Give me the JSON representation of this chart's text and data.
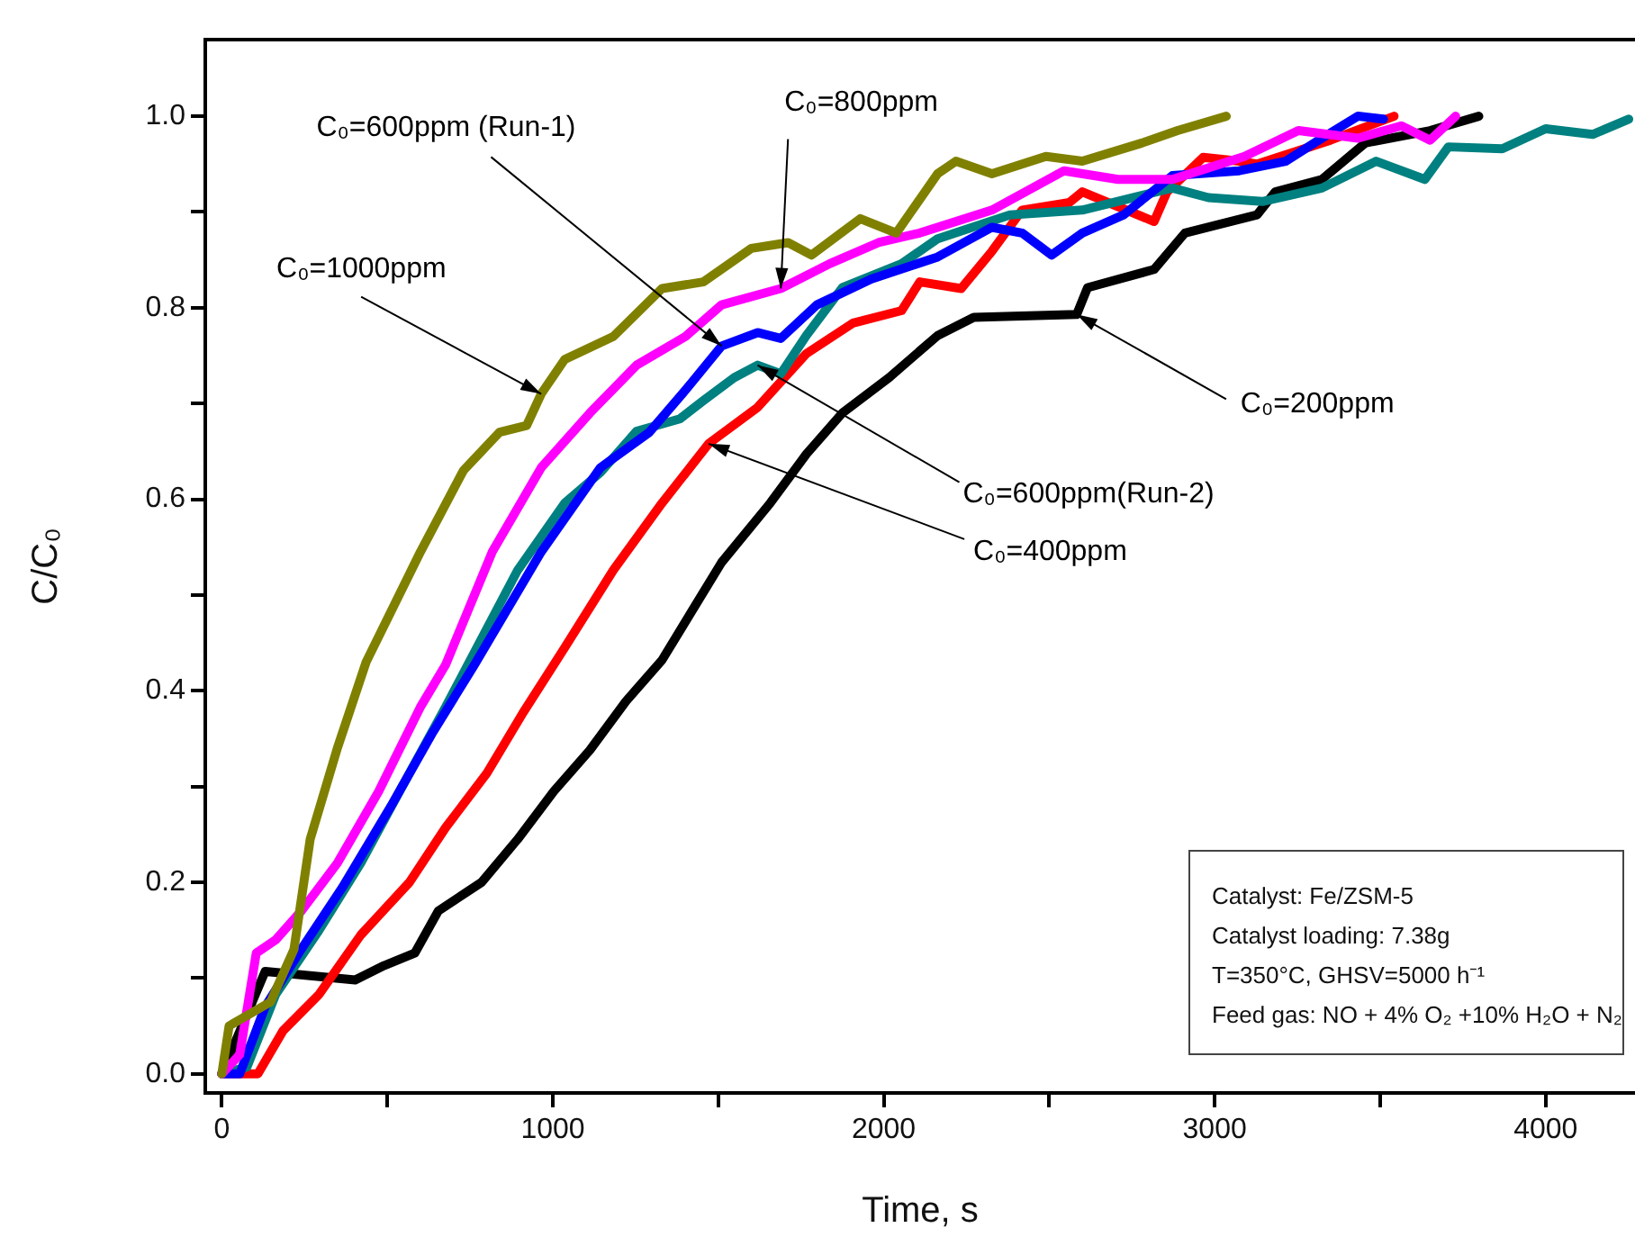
{
  "chart_data": {
    "type": "line",
    "xlabel": "Time, s",
    "ylabel": "C/C₀",
    "xlim": [
      -50,
      4270
    ],
    "ylim": [
      -0.02,
      1.08
    ],
    "xticks": [
      0,
      {
        "value": 500,
        "label": null
      },
      1000,
      {
        "value": 1500,
        "label": null
      },
      2000,
      {
        "value": 2500,
        "label": null
      },
      3000,
      {
        "value": 3500,
        "label": null
      },
      4000
    ],
    "yticks": [
      {
        "value": 0,
        "label": "0.0"
      },
      {
        "value": 0.1,
        "label": null
      },
      0.2,
      {
        "value": 0.3,
        "label": null
      },
      0.4,
      {
        "value": 0.5,
        "label": null
      },
      0.6,
      {
        "value": 0.7,
        "label": null
      },
      0.8,
      {
        "value": 0.9,
        "label": null
      },
      {
        "value": 1,
        "label": "1.0"
      }
    ],
    "grid": false,
    "legend": false,
    "marker": "none",
    "line_style": "solid",
    "series": [
      {
        "color": "#808000",
        "x": [
          0,
          22,
          147,
          218,
          267,
          349,
          436,
          600,
          730,
          839,
          921,
          965,
          1036,
          1183,
          1330,
          1455,
          1600,
          1711,
          1782,
          1929,
          2038,
          2163,
          2218,
          2327,
          2490,
          2600,
          2780,
          2888,
          3035
        ],
        "values": [
          0,
          0.05,
          0.075,
          0.13,
          0.245,
          0.34,
          0.43,
          0.545,
          0.63,
          0.67,
          0.677,
          0.71,
          0.746,
          0.77,
          0.82,
          0.827,
          0.862,
          0.868,
          0.855,
          0.893,
          0.878,
          0.94,
          0.953,
          0.94,
          0.958,
          0.953,
          0.972,
          0.985,
          1.0
        ]
      },
      {
        "color": "#ff00ff",
        "x": [
          0,
          54,
          104,
          163,
          240,
          349,
          474,
          600,
          676,
          817,
          965,
          1112,
          1253,
          1401,
          1510,
          1689,
          1837,
          1984,
          2109,
          2327,
          2545,
          2708,
          2872,
          3090,
          3253,
          3433,
          3564,
          3651,
          3728
        ],
        "values": [
          0,
          0.02,
          0.126,
          0.14,
          0.17,
          0.22,
          0.295,
          0.383,
          0.427,
          0.545,
          0.633,
          0.69,
          0.74,
          0.77,
          0.803,
          0.82,
          0.846,
          0.868,
          0.878,
          0.902,
          0.943,
          0.934,
          0.934,
          0.958,
          0.985,
          0.977,
          0.99,
          0.975,
          1.0
        ]
      },
      {
        "color": "#0000ff",
        "x": [
          0,
          54,
          131,
          240,
          365,
          512,
          638,
          763,
          965,
          1144,
          1292,
          1401,
          1510,
          1619,
          1689,
          1798,
          1962,
          2163,
          2327,
          2418,
          2507,
          2600,
          2725,
          2872,
          3074,
          3215,
          3324,
          3433,
          3510
        ],
        "values": [
          0,
          0,
          0.07,
          0.13,
          0.195,
          0.28,
          0.357,
          0.427,
          0.545,
          0.633,
          0.67,
          0.714,
          0.76,
          0.774,
          0.768,
          0.803,
          0.83,
          0.853,
          0.884,
          0.878,
          0.855,
          0.878,
          0.897,
          0.938,
          0.943,
          0.953,
          0.977,
          1.0,
          0.997
        ]
      },
      {
        "color": "#008080",
        "x": [
          0,
          76,
          163,
          294,
          420,
          545,
          676,
          894,
          1036,
          1144,
          1253,
          1384,
          1455,
          1548,
          1619,
          1689,
          1766,
          1875,
          2054,
          2163,
          2381,
          2600,
          2872,
          2981,
          3144,
          3324,
          3488,
          3635,
          3706,
          3869,
          4000,
          4142,
          4251
        ],
        "values": [
          0,
          0.007,
          0.083,
          0.15,
          0.22,
          0.3,
          0.383,
          0.526,
          0.596,
          0.628,
          0.671,
          0.684,
          0.703,
          0.727,
          0.74,
          0.731,
          0.771,
          0.821,
          0.846,
          0.872,
          0.897,
          0.902,
          0.925,
          0.915,
          0.911,
          0.925,
          0.953,
          0.934,
          0.968,
          0.966,
          0.987,
          0.981,
          0.997
        ]
      },
      {
        "color": "#ff0000",
        "x": [
          0,
          109,
          185,
          294,
          420,
          567,
          676,
          801,
          910,
          1036,
          1183,
          1330,
          1471,
          1619,
          1766,
          1907,
          2054,
          2109,
          2234,
          2327,
          2418,
          2561,
          2600,
          2817,
          2856,
          2965,
          3074,
          3128,
          3350,
          3542
        ],
        "values": [
          0,
          0,
          0.045,
          0.083,
          0.145,
          0.2,
          0.257,
          0.314,
          0.377,
          0.445,
          0.526,
          0.596,
          0.658,
          0.696,
          0.752,
          0.784,
          0.797,
          0.827,
          0.82,
          0.859,
          0.902,
          0.91,
          0.921,
          0.89,
          0.921,
          0.957,
          0.953,
          0.95,
          0.975,
          1.0
        ]
      },
      {
        "color": "#000000",
        "x": [
          0,
          131,
          403,
          490,
          583,
          654,
          785,
          894,
          1003,
          1112,
          1221,
          1330,
          1510,
          1657,
          1766,
          1875,
          2016,
          2163,
          2272,
          2583,
          2616,
          2817,
          2910,
          3128,
          3183,
          3324,
          3455,
          3651,
          3798
        ],
        "values": [
          0,
          0.107,
          0.098,
          0.113,
          0.126,
          0.17,
          0.2,
          0.245,
          0.295,
          0.338,
          0.389,
          0.432,
          0.534,
          0.596,
          0.647,
          0.69,
          0.727,
          0.771,
          0.79,
          0.793,
          0.821,
          0.84,
          0.878,
          0.897,
          0.921,
          0.934,
          0.972,
          0.985,
          1.0
        ]
      }
    ],
    "annotations": [
      {
        "text": "C₀=1000ppm",
        "x": 965,
        "y": 0.71
      },
      {
        "text": "C₀=600ppm (Run-1)",
        "x": 1510,
        "y": 0.76
      },
      {
        "text": "C₀=800ppm",
        "x": 1689,
        "y": 0.82
      },
      {
        "text": "C₀=600ppm(Run-2)",
        "x": 1619,
        "y": 0.74
      },
      {
        "text": "C₀=400ppm",
        "x": 1471,
        "y": 0.658
      },
      {
        "text": "C₀=200ppm",
        "x": 2583,
        "y": 0.793
      },
      "Catalyst: Fe/ZSM-5",
      "Catalyst loading: 7.38g",
      "T=350°C, GHSV=5000 h⁻¹",
      "Feed gas: NO + 4% O₂ +10% H₂O + N₂"
    ]
  }
}
